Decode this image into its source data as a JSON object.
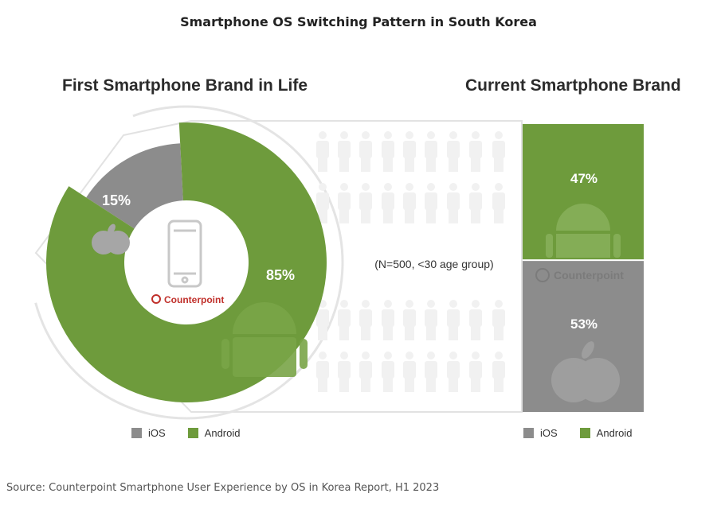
{
  "title": "Smartphone OS Switching Pattern in South Korea",
  "source": "Source: Counterpoint Smartphone User Experience by OS in Korea Report, H1 2023",
  "colors": {
    "ios": "#8c8c8c",
    "android": "#6e9b3c",
    "figure": "#f1f1f1",
    "ring": "#e6e6e6"
  },
  "chart_data": [
    {
      "type": "pie",
      "title": "First Smartphone Brand in Life",
      "categories": [
        "iOS",
        "Android"
      ],
      "values": [
        15,
        85
      ],
      "labels": [
        "15%",
        "85%"
      ],
      "legend": [
        "iOS",
        "Android"
      ],
      "legend_position": "bottom"
    },
    {
      "type": "bar",
      "title": "Current Smartphone Brand",
      "categories": [
        "Android",
        "iOS"
      ],
      "values": [
        47,
        53
      ],
      "labels": [
        "47%",
        "53%"
      ],
      "legend": [
        "iOS",
        "Android"
      ],
      "legend_position": "bottom"
    }
  ],
  "annotation": "(N=500, <30 age group)",
  "watermark": "Counterpoint"
}
